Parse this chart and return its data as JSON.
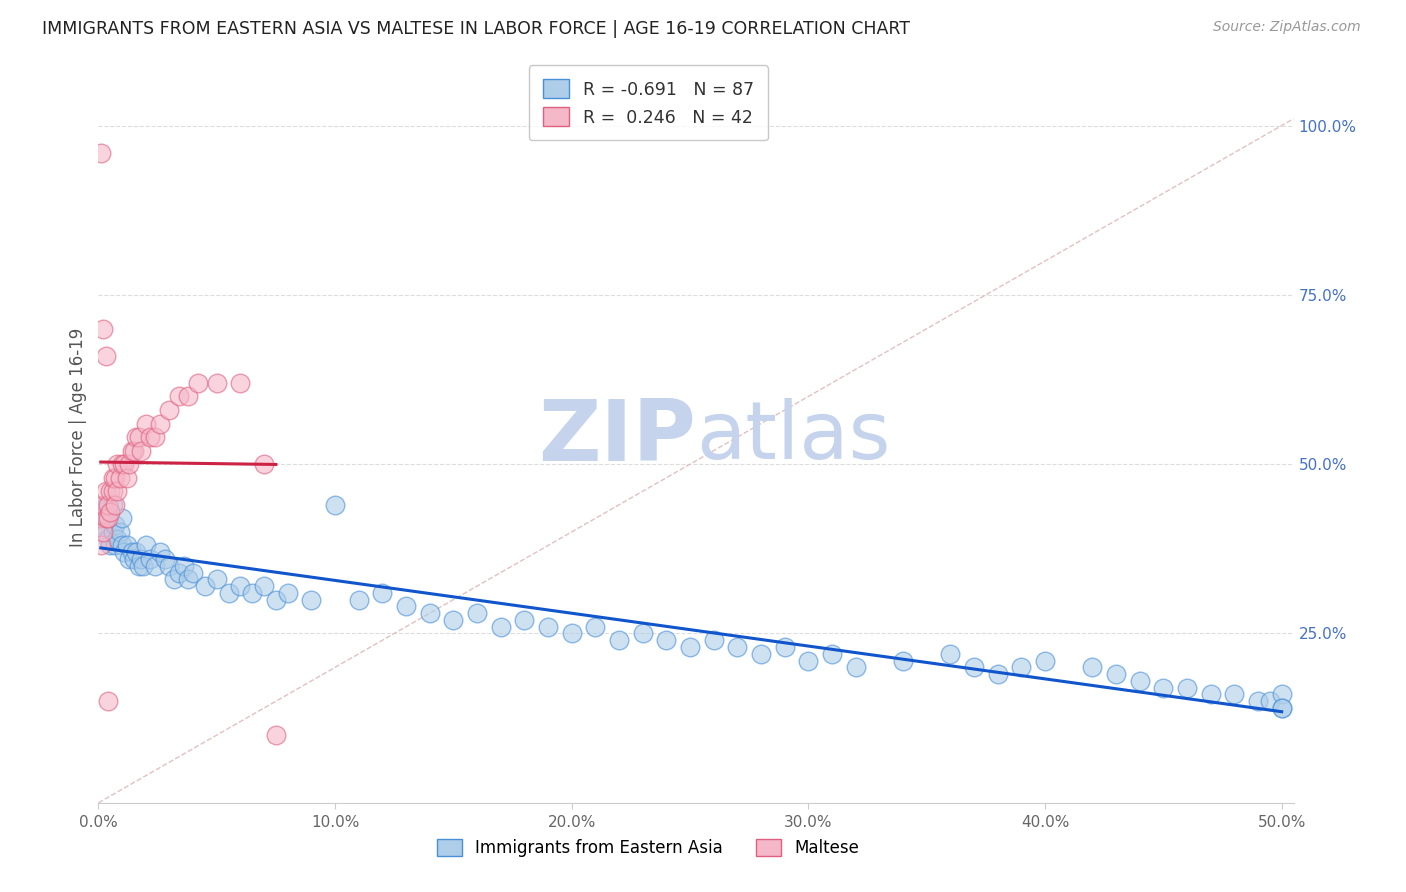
{
  "title": "IMMIGRANTS FROM EASTERN ASIA VS MALTESE IN LABOR FORCE | AGE 16-19 CORRELATION CHART",
  "source": "Source: ZipAtlas.com",
  "ylabel": "In Labor Force | Age 16-19",
  "xlim": [
    0.0,
    0.505
  ],
  "ylim": [
    0.0,
    1.08
  ],
  "xticks": [
    0.0,
    0.1,
    0.2,
    0.3,
    0.4,
    0.5
  ],
  "xtick_labels": [
    "0.0%",
    "10.0%",
    "20.0%",
    "30.0%",
    "40.0%",
    "50.0%"
  ],
  "ytick_right_vals": [
    0.25,
    0.5,
    0.75,
    1.0
  ],
  "ytick_right_labels": [
    "25.0%",
    "50.0%",
    "75.0%",
    "100.0%"
  ],
  "blue_R": -0.691,
  "blue_N": 87,
  "pink_R": 0.246,
  "pink_N": 42,
  "blue_scatter_color": "#aecde8",
  "pink_scatter_color": "#f5b8c8",
  "blue_edge_color": "#4a90d9",
  "pink_edge_color": "#e06080",
  "blue_line_color": "#1155cc",
  "pink_line_color": "#cc2244",
  "diagonal_color": "#ddbbbb",
  "grid_color": "#dddddd",
  "background_color": "#ffffff",
  "title_color": "#222222",
  "right_axis_color": "#4472c4",
  "watermark_color": "#c8d8f0",
  "legend_label_blue": "Immigrants from Eastern Asia",
  "legend_label_pink": "Maltese",
  "blue_x": [
    0.001,
    0.002,
    0.002,
    0.003,
    0.003,
    0.004,
    0.004,
    0.005,
    0.005,
    0.006,
    0.006,
    0.007,
    0.007,
    0.008,
    0.009,
    0.01,
    0.01,
    0.011,
    0.012,
    0.013,
    0.014,
    0.015,
    0.016,
    0.017,
    0.018,
    0.019,
    0.02,
    0.022,
    0.024,
    0.026,
    0.028,
    0.03,
    0.032,
    0.034,
    0.036,
    0.038,
    0.04,
    0.045,
    0.05,
    0.055,
    0.06,
    0.065,
    0.07,
    0.075,
    0.08,
    0.09,
    0.1,
    0.11,
    0.12,
    0.13,
    0.14,
    0.15,
    0.16,
    0.17,
    0.18,
    0.19,
    0.2,
    0.21,
    0.22,
    0.23,
    0.24,
    0.25,
    0.26,
    0.27,
    0.28,
    0.29,
    0.3,
    0.31,
    0.32,
    0.34,
    0.36,
    0.37,
    0.38,
    0.39,
    0.4,
    0.42,
    0.43,
    0.44,
    0.45,
    0.46,
    0.47,
    0.48,
    0.49,
    0.495,
    0.5,
    0.5,
    0.5
  ],
  "blue_y": [
    0.42,
    0.43,
    0.41,
    0.44,
    0.4,
    0.42,
    0.39,
    0.43,
    0.38,
    0.44,
    0.4,
    0.41,
    0.38,
    0.39,
    0.4,
    0.38,
    0.42,
    0.37,
    0.38,
    0.36,
    0.37,
    0.36,
    0.37,
    0.35,
    0.36,
    0.35,
    0.38,
    0.36,
    0.35,
    0.37,
    0.36,
    0.35,
    0.33,
    0.34,
    0.35,
    0.33,
    0.34,
    0.32,
    0.33,
    0.31,
    0.32,
    0.31,
    0.32,
    0.3,
    0.31,
    0.3,
    0.44,
    0.3,
    0.31,
    0.29,
    0.28,
    0.27,
    0.28,
    0.26,
    0.27,
    0.26,
    0.25,
    0.26,
    0.24,
    0.25,
    0.24,
    0.23,
    0.24,
    0.23,
    0.22,
    0.23,
    0.21,
    0.22,
    0.2,
    0.21,
    0.22,
    0.2,
    0.19,
    0.2,
    0.21,
    0.2,
    0.19,
    0.18,
    0.17,
    0.17,
    0.16,
    0.16,
    0.15,
    0.15,
    0.16,
    0.14,
    0.14
  ],
  "pink_x": [
    0.001,
    0.001,
    0.002,
    0.002,
    0.003,
    0.003,
    0.004,
    0.004,
    0.005,
    0.005,
    0.006,
    0.006,
    0.007,
    0.007,
    0.008,
    0.008,
    0.009,
    0.01,
    0.011,
    0.012,
    0.013,
    0.014,
    0.015,
    0.016,
    0.017,
    0.018,
    0.02,
    0.022,
    0.024,
    0.026,
    0.03,
    0.034,
    0.038,
    0.042,
    0.05,
    0.06,
    0.07,
    0.075,
    0.002,
    0.003,
    0.001,
    0.004
  ],
  "pink_y": [
    0.38,
    0.42,
    0.4,
    0.44,
    0.42,
    0.46,
    0.42,
    0.44,
    0.43,
    0.46,
    0.46,
    0.48,
    0.44,
    0.48,
    0.46,
    0.5,
    0.48,
    0.5,
    0.5,
    0.48,
    0.5,
    0.52,
    0.52,
    0.54,
    0.54,
    0.52,
    0.56,
    0.54,
    0.54,
    0.56,
    0.58,
    0.6,
    0.6,
    0.62,
    0.62,
    0.62,
    0.5,
    0.1,
    0.7,
    0.66,
    0.96,
    0.15
  ]
}
